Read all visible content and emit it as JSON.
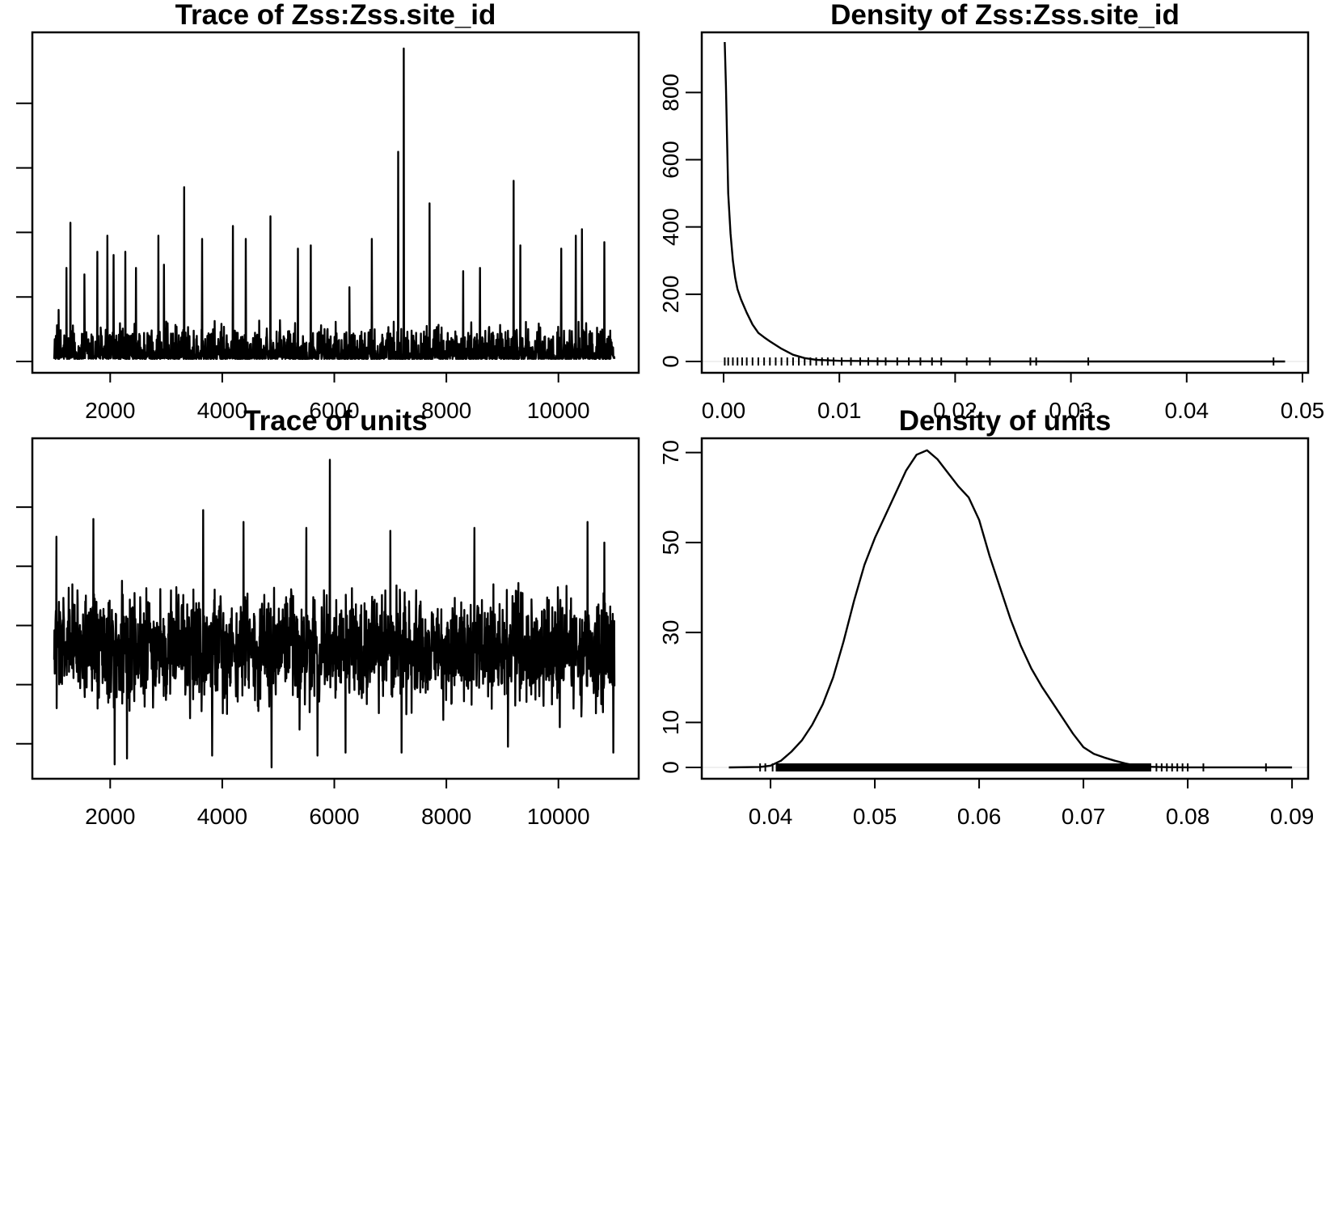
{
  "chart_data": [
    {
      "type": "line",
      "title": "Trace of Zss:Zss.site_id",
      "xlabel": "",
      "ylabel": "",
      "xlim": [
        1000,
        11000
      ],
      "ylim": [
        0,
        0.0495
      ],
      "x_ticks": [
        2000,
        4000,
        6000,
        8000,
        10000
      ],
      "x_tick_labels": [
        "2000",
        "4000",
        "6000",
        "8000",
        "10000"
      ],
      "y_ticks": [
        0,
        0.01,
        0.02,
        0.03,
        0.04
      ],
      "y_tick_labels": [],
      "series": [
        {
          "baseline": 0.0004,
          "noise": 0.0038,
          "spikes": [
            {
              "x": 1080,
              "y": 0.008
            },
            {
              "x": 1220,
              "y": 0.0145
            },
            {
              "x": 1290,
              "y": 0.0215
            },
            {
              "x": 1540,
              "y": 0.0135
            },
            {
              "x": 1770,
              "y": 0.017
            },
            {
              "x": 1950,
              "y": 0.0195
            },
            {
              "x": 2060,
              "y": 0.0165
            },
            {
              "x": 2270,
              "y": 0.017
            },
            {
              "x": 2460,
              "y": 0.0145
            },
            {
              "x": 2860,
              "y": 0.0195
            },
            {
              "x": 2960,
              "y": 0.015
            },
            {
              "x": 3320,
              "y": 0.027
            },
            {
              "x": 3640,
              "y": 0.019
            },
            {
              "x": 4190,
              "y": 0.021
            },
            {
              "x": 4420,
              "y": 0.019
            },
            {
              "x": 4860,
              "y": 0.0225
            },
            {
              "x": 5350,
              "y": 0.0175
            },
            {
              "x": 5580,
              "y": 0.018
            },
            {
              "x": 6270,
              "y": 0.0115
            },
            {
              "x": 6670,
              "y": 0.019
            },
            {
              "x": 7140,
              "y": 0.0325
            },
            {
              "x": 7240,
              "y": 0.0485
            },
            {
              "x": 7700,
              "y": 0.0245
            },
            {
              "x": 8300,
              "y": 0.014
            },
            {
              "x": 8600,
              "y": 0.0145
            },
            {
              "x": 9200,
              "y": 0.028
            },
            {
              "x": 9320,
              "y": 0.018
            },
            {
              "x": 10050,
              "y": 0.0175
            },
            {
              "x": 10310,
              "y": 0.0195
            },
            {
              "x": 10420,
              "y": 0.0205
            },
            {
              "x": 10820,
              "y": 0.0185
            }
          ]
        }
      ]
    },
    {
      "type": "line",
      "title": "Density of Zss:Zss.site_id",
      "xlabel": "",
      "ylabel": "",
      "xlim": [
        0,
        0.05
      ],
      "ylim": [
        0,
        950
      ],
      "x_ticks": [
        0.0,
        0.01,
        0.02,
        0.03,
        0.04,
        0.05
      ],
      "x_tick_labels": [
        "0.00",
        "0.01",
        "0.02",
        "0.03",
        "0.04",
        "0.05"
      ],
      "y_ticks": [
        0,
        200,
        400,
        600,
        800
      ],
      "y_tick_labels": [
        "0",
        "200",
        "400",
        "600",
        "800"
      ],
      "series": [
        {
          "x": [
            0.0001,
            0.0002,
            0.0004,
            0.0006,
            0.0008,
            0.001,
            0.0012,
            0.0015,
            0.002,
            0.0025,
            0.003,
            0.0035,
            0.004,
            0.005,
            0.006,
            0.007,
            0.008,
            0.01,
            0.015,
            0.02,
            0.03,
            0.04,
            0.0485
          ],
          "y": [
            950,
            820,
            500,
            380,
            300,
            250,
            215,
            185,
            145,
            110,
            85,
            72,
            60,
            38,
            20,
            10,
            5,
            2,
            0.5,
            0.2,
            0.1,
            0.05,
            0
          ]
        }
      ],
      "rug": [
        0.0001,
        0.0004,
        0.0008,
        0.0012,
        0.0016,
        0.002,
        0.0025,
        0.003,
        0.0035,
        0.004,
        0.0045,
        0.005,
        0.0055,
        0.006,
        0.0065,
        0.007,
        0.0075,
        0.008,
        0.0085,
        0.009,
        0.0095,
        0.0102,
        0.011,
        0.0118,
        0.0125,
        0.0133,
        0.014,
        0.015,
        0.016,
        0.017,
        0.018,
        0.0188,
        0.021,
        0.023,
        0.0265,
        0.027,
        0.0315,
        0.0475
      ]
    },
    {
      "type": "line",
      "title": "Trace of units",
      "xlabel": "",
      "ylabel": "",
      "xlim": [
        1000,
        11000
      ],
      "ylim": [
        0.036,
        0.09
      ],
      "x_ticks": [
        2000,
        4000,
        6000,
        8000,
        10000
      ],
      "x_tick_labels": [
        "2000",
        "4000",
        "6000",
        "8000",
        "10000"
      ],
      "y_ticks": [
        0.04,
        0.05,
        0.06,
        0.07,
        0.08
      ],
      "y_tick_labels": [],
      "series": [
        {
          "center": 0.056,
          "spread": 0.0055,
          "spikes": [
            {
              "x": 1040,
              "y": 0.075
            },
            {
              "x": 1700,
              "y": 0.078
            },
            {
              "x": 2080,
              "y": 0.0365
            },
            {
              "x": 2300,
              "y": 0.0375
            },
            {
              "x": 3300,
              "y": 0.0595
            },
            {
              "x": 3660,
              "y": 0.0795
            },
            {
              "x": 3820,
              "y": 0.038
            },
            {
              "x": 4380,
              "y": 0.0775
            },
            {
              "x": 4880,
              "y": 0.036
            },
            {
              "x": 5500,
              "y": 0.0765
            },
            {
              "x": 5700,
              "y": 0.038
            },
            {
              "x": 5920,
              "y": 0.088
            },
            {
              "x": 6200,
              "y": 0.0385
            },
            {
              "x": 7000,
              "y": 0.076
            },
            {
              "x": 7200,
              "y": 0.0385
            },
            {
              "x": 8500,
              "y": 0.0765
            },
            {
              "x": 9100,
              "y": 0.0395
            },
            {
              "x": 10520,
              "y": 0.0775
            },
            {
              "x": 10820,
              "y": 0.074
            },
            {
              "x": 10980,
              "y": 0.0385
            }
          ]
        }
      ]
    },
    {
      "type": "line",
      "title": "Density of units",
      "xlabel": "",
      "ylabel": "",
      "xlim": [
        0.0355,
        0.091
      ],
      "ylim": [
        0,
        71
      ],
      "x_ticks": [
        0.04,
        0.05,
        0.06,
        0.07,
        0.08,
        0.09
      ],
      "x_tick_labels": [
        "0.04",
        "0.05",
        "0.06",
        "0.07",
        "0.08",
        "0.09"
      ],
      "y_ticks": [
        0,
        10,
        30,
        50,
        70
      ],
      "y_tick_labels": [
        "0",
        "10",
        "30",
        "50",
        "70"
      ],
      "series": [
        {
          "x": [
            0.036,
            0.039,
            0.04,
            0.041,
            0.042,
            0.043,
            0.044,
            0.045,
            0.046,
            0.047,
            0.048,
            0.049,
            0.05,
            0.051,
            0.052,
            0.053,
            0.054,
            0.055,
            0.056,
            0.057,
            0.058,
            0.059,
            0.06,
            0.061,
            0.062,
            0.063,
            0.064,
            0.065,
            0.066,
            0.067,
            0.068,
            0.069,
            0.07,
            0.071,
            0.072,
            0.073,
            0.074,
            0.075,
            0.076,
            0.078,
            0.08,
            0.085,
            0.09
          ],
          "y": [
            0,
            0.1,
            0.4,
            1.5,
            3.5,
            6,
            9.5,
            14,
            20,
            28,
            37,
            45,
            51,
            56,
            61,
            66,
            69.5,
            70.5,
            68.5,
            65.5,
            62.5,
            60,
            55,
            47,
            40,
            33,
            27,
            22,
            18,
            14.5,
            11,
            7.5,
            4.5,
            3.0,
            2.2,
            1.5,
            0.9,
            0.4,
            0.15,
            0.05,
            0.02,
            0.01,
            0
          ]
        }
      ],
      "rug_range": [
        0.0405,
        0.0765
      ],
      "rug": [
        0.039,
        0.0395,
        0.0402,
        0.0408,
        0.0414,
        0.077,
        0.0775,
        0.078,
        0.0785,
        0.079,
        0.0795,
        0.08,
        0.0815,
        0.0875
      ]
    }
  ]
}
